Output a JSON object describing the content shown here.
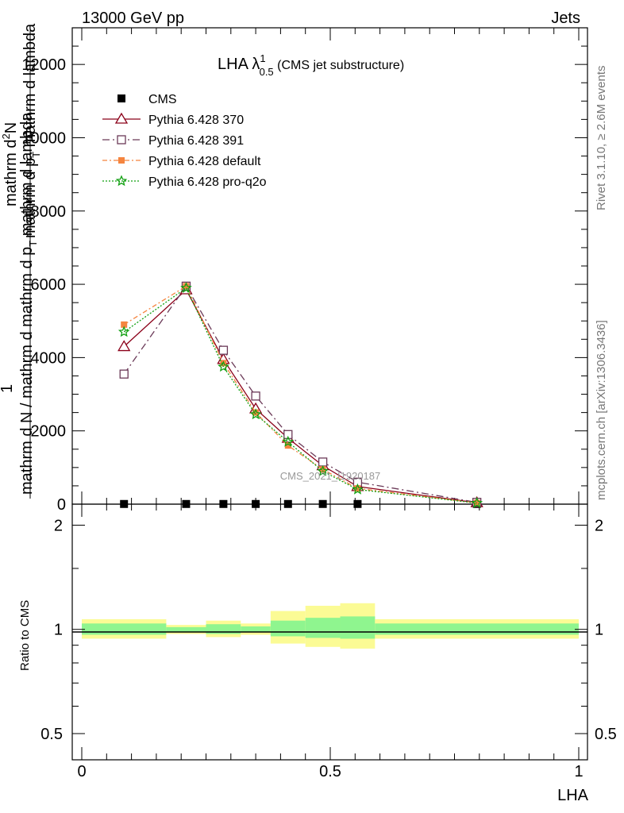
{
  "header": {
    "left": "13000 GeV pp",
    "right": "Jets"
  },
  "title": {
    "main": "LHA λ",
    "sup": "1",
    "sub": "0.5",
    "suffix": " (CMS jet substructure)"
  },
  "side_labels": {
    "rivet": "Rivet 3.1.10, ≥ 2.6M events",
    "mcplots": "mcplots.cern.ch [arXiv:1306.3436]"
  },
  "watermark": "CMS_2021_I1920187",
  "ylabel_main": {
    "frac_num": "1",
    "frac_den": "mathrm d N / mathrm d mathrm d p",
    "frac_den_sub": "T",
    "frac_den_rest": " mathrm d lambda",
    "big_num": "mathrm d",
    "big_num_sup": "2",
    "big_num_rest": "N",
    "big_den": "mathrm d p",
    "big_den_sub": "T",
    "big_den_rest": " mathrm d lambda"
  },
  "ylabel_ratio": "Ratio to CMS",
  "xlabel": "LHA",
  "colors": {
    "cms": "#000000",
    "p370": "#8b0019",
    "p391": "#6b3a58",
    "pdefault": "#f5853f",
    "pproq2o": "#12a012",
    "band_yellow": "#fbfb95",
    "band_green": "#8ff58f"
  },
  "chart_data": {
    "type": "line",
    "xlim": [
      0,
      1
    ],
    "ylim": [
      0,
      13000
    ],
    "y_ticks": [
      0,
      2000,
      4000,
      6000,
      8000,
      10000,
      12000
    ],
    "y_tick_labels": [
      "0",
      "2000",
      "4000",
      "6000",
      "8000",
      "10000",
      "12000"
    ],
    "x_ticks": [
      0,
      0.5,
      1
    ],
    "x_tick_labels": [
      "0",
      "0.5",
      "1"
    ],
    "ratio_ylim": [
      0.42,
      2.3
    ],
    "ratio_ticks": [
      0.5,
      1,
      2
    ],
    "ratio_tick_labels": [
      "0.5",
      "1",
      "2"
    ],
    "x": [
      0.085,
      0.21,
      0.285,
      0.35,
      0.415,
      0.485,
      0.555,
      0.795
    ],
    "series": [
      {
        "name": "CMS",
        "key": "cms",
        "style": "cms",
        "values": [
          5,
          5,
          5,
          5,
          5,
          5,
          5,
          5
        ]
      },
      {
        "name": "Pythia 6.428 370",
        "key": "p370",
        "style": "solid-triangle",
        "values": [
          4300,
          5850,
          3950,
          2600,
          1800,
          1050,
          480,
          40
        ]
      },
      {
        "name": "Pythia 6.428 391",
        "key": "p391",
        "style": "dashdot-square",
        "values": [
          3550,
          5950,
          4200,
          2950,
          1900,
          1150,
          600,
          50
        ]
      },
      {
        "name": "Pythia 6.428 default",
        "key": "pdefault",
        "style": "dashdot-filledsquare",
        "values": [
          4900,
          5950,
          3850,
          2500,
          1600,
          950,
          430,
          35
        ]
      },
      {
        "name": "Pythia 6.428 pro-q2o",
        "key": "pproq2o",
        "style": "dotted-star",
        "values": [
          4700,
          5900,
          3750,
          2450,
          1700,
          900,
          400,
          30
        ]
      }
    ],
    "ratio_bands": [
      {
        "x0": 0.0,
        "x1": 0.17,
        "yellow": [
          0.94,
          1.07
        ],
        "green": [
          0.965,
          1.04
        ]
      },
      {
        "x0": 0.17,
        "x1": 0.25,
        "yellow": [
          0.97,
          1.03
        ],
        "green": [
          0.985,
          1.015
        ]
      },
      {
        "x0": 0.25,
        "x1": 0.32,
        "yellow": [
          0.95,
          1.06
        ],
        "green": [
          0.97,
          1.035
        ]
      },
      {
        "x0": 0.32,
        "x1": 0.38,
        "yellow": [
          0.965,
          1.04
        ],
        "green": [
          0.98,
          1.02
        ]
      },
      {
        "x0": 0.38,
        "x1": 0.45,
        "yellow": [
          0.91,
          1.13
        ],
        "green": [
          0.955,
          1.06
        ]
      },
      {
        "x0": 0.45,
        "x1": 0.52,
        "yellow": [
          0.89,
          1.17
        ],
        "green": [
          0.945,
          1.08
        ]
      },
      {
        "x0": 0.52,
        "x1": 0.59,
        "yellow": [
          0.88,
          1.19
        ],
        "green": [
          0.94,
          1.09
        ]
      },
      {
        "x0": 0.59,
        "x1": 1.0,
        "yellow": [
          0.94,
          1.07
        ],
        "green": [
          0.965,
          1.04
        ]
      }
    ]
  }
}
